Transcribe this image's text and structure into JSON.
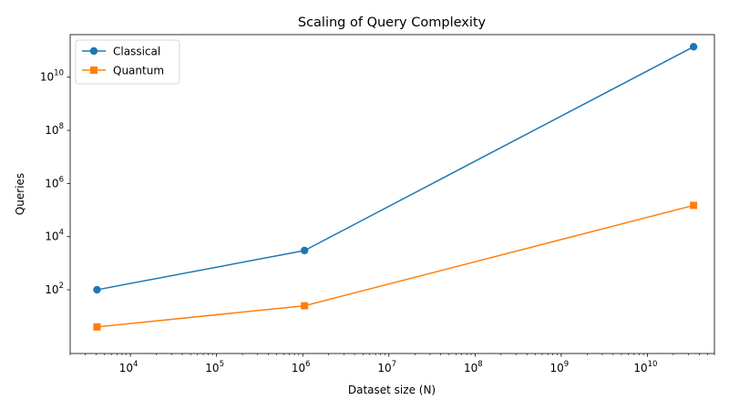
{
  "chart_data": {
    "type": "line",
    "title": "Scaling of Query Complexity",
    "xlabel": "Dataset size (N)",
    "ylabel": "Queries",
    "xscale": "log",
    "yscale": "log",
    "xlim": [
      2000,
      60000000000
    ],
    "ylim": [
      0.4,
      400000000000
    ],
    "x": [
      4096,
      1048576,
      34359738368
    ],
    "series": [
      {
        "name": "Classical",
        "values": [
          100,
          3000,
          140000000000
        ],
        "color": "#1f77b4",
        "marker": "circle"
      },
      {
        "name": "Quantum",
        "values": [
          4,
          25,
          150000
        ],
        "color": "#ff7f0e",
        "marker": "square"
      }
    ],
    "x_ticks": [
      {
        "exp": 4,
        "label": "10",
        "sup": "4"
      },
      {
        "exp": 5,
        "label": "10",
        "sup": "5"
      },
      {
        "exp": 6,
        "label": "10",
        "sup": "6"
      },
      {
        "exp": 7,
        "label": "10",
        "sup": "7"
      },
      {
        "exp": 8,
        "label": "10",
        "sup": "8"
      },
      {
        "exp": 9,
        "label": "10",
        "sup": "9"
      },
      {
        "exp": 10,
        "label": "10",
        "sup": "10"
      }
    ],
    "y_ticks": [
      {
        "exp": 2,
        "label": "10",
        "sup": "2"
      },
      {
        "exp": 4,
        "label": "10",
        "sup": "4"
      },
      {
        "exp": 6,
        "label": "10",
        "sup": "6"
      },
      {
        "exp": 8,
        "label": "10",
        "sup": "8"
      },
      {
        "exp": 10,
        "label": "10",
        "sup": "10"
      }
    ],
    "legend_position": "top-left",
    "grid": false
  }
}
